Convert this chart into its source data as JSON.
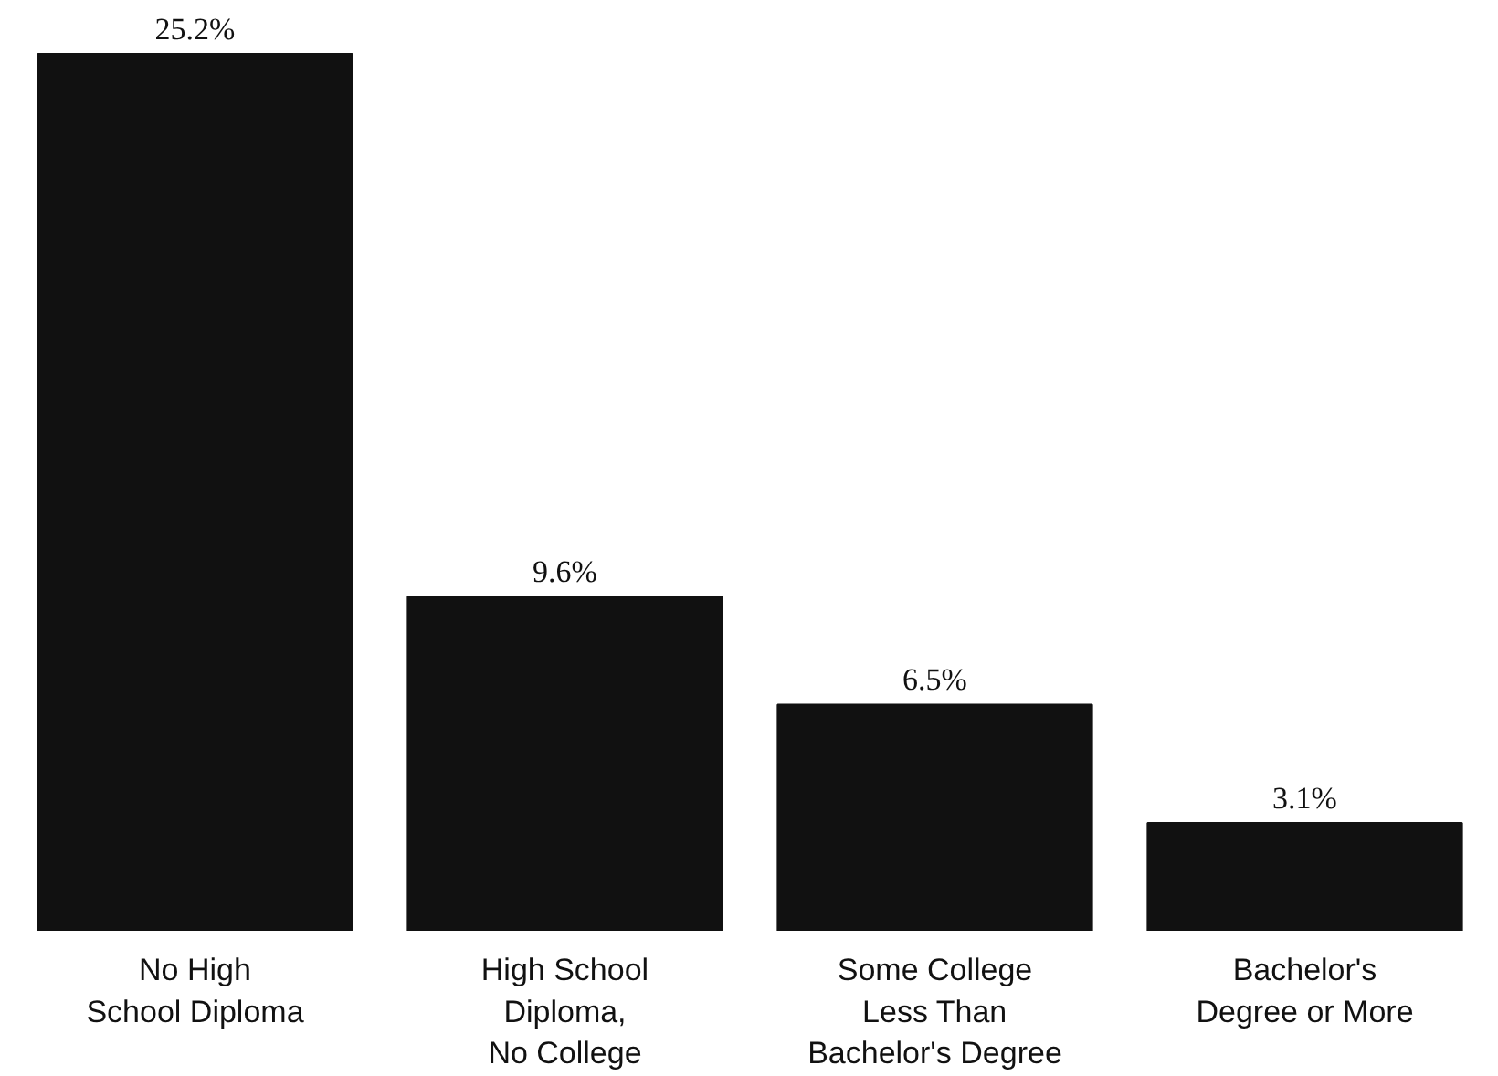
{
  "chart_data": {
    "type": "bar",
    "categories": [
      "No High\nSchool Diploma",
      "High School\nDiploma,\nNo College",
      "Some College\nLess Than\nBachelor's Degree",
      "Bachelor's\nDegree or More"
    ],
    "values": [
      25.2,
      9.6,
      6.5,
      3.1
    ],
    "value_labels": [
      "25.2%",
      "9.6%",
      "6.5%",
      "3.1%"
    ],
    "color": "#111111"
  }
}
